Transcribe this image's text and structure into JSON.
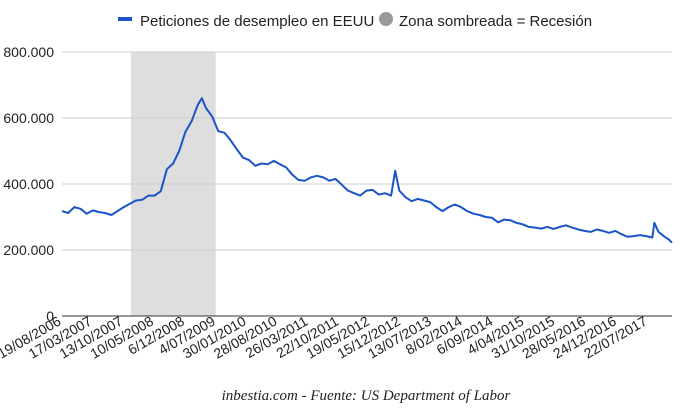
{
  "legend": {
    "series_label": "Peticiones de desempleo en EEUU",
    "shade_label": "Zona sombreada = Recesión"
  },
  "caption": "inbestia.com - Fuente: US Department of Labor",
  "colors": {
    "series": "#1a55c8",
    "recession": "#dedede",
    "shade_marker": "#999999",
    "grid": "#cccccc",
    "axis": "#333333"
  },
  "chart_data": {
    "type": "line",
    "title": "",
    "xlabel": "",
    "ylabel": "",
    "x_range": [
      "2006-08-19",
      "2017-12-31"
    ],
    "ylim": [
      0,
      800000
    ],
    "grid": true,
    "legend_position": "top",
    "y_ticks": [
      {
        "value": 0,
        "label": "0"
      },
      {
        "value": 200000,
        "label": "200.000"
      },
      {
        "value": 400000,
        "label": "400.000"
      },
      {
        "value": 600000,
        "label": "600.000"
      },
      {
        "value": 800000,
        "label": "800.000"
      }
    ],
    "x_ticks": [
      {
        "date": "2006-08-19",
        "label": "19/08/2006"
      },
      {
        "date": "2007-03-17",
        "label": "17/03/2007"
      },
      {
        "date": "2007-10-13",
        "label": "13/10/2007"
      },
      {
        "date": "2008-05-10",
        "label": "10/05/2008"
      },
      {
        "date": "2008-12-06",
        "label": "6/12/2008"
      },
      {
        "date": "2009-07-04",
        "label": "4/07/2009"
      },
      {
        "date": "2010-01-30",
        "label": "30/01/2010"
      },
      {
        "date": "2010-08-28",
        "label": "28/08/2010"
      },
      {
        "date": "2011-03-26",
        "label": "26/03/2011"
      },
      {
        "date": "2011-10-22",
        "label": "22/10/2011"
      },
      {
        "date": "2012-05-19",
        "label": "19/05/2012"
      },
      {
        "date": "2012-12-15",
        "label": "15/12/2012"
      },
      {
        "date": "2013-07-13",
        "label": "13/07/2013"
      },
      {
        "date": "2014-02-08",
        "label": "8/02/2014"
      },
      {
        "date": "2014-09-06",
        "label": "6/09/2014"
      },
      {
        "date": "2015-04-04",
        "label": "4/04/2015"
      },
      {
        "date": "2015-10-31",
        "label": "31/10/2015"
      },
      {
        "date": "2016-05-28",
        "label": "28/05/2016"
      },
      {
        "date": "2016-12-24",
        "label": "24/12/2016"
      },
      {
        "date": "2017-07-22",
        "label": "22/07/2017"
      }
    ],
    "recession": {
      "start": "2007-12-01",
      "end": "2009-06-30"
    },
    "series": [
      {
        "name": "Peticiones de desempleo en EEUU",
        "points": [
          [
            "2006-08-19",
            318000
          ],
          [
            "2006-09-30",
            312000
          ],
          [
            "2006-11-11",
            330000
          ],
          [
            "2006-12-23",
            325000
          ],
          [
            "2007-02-03",
            310000
          ],
          [
            "2007-03-17",
            320000
          ],
          [
            "2007-04-28",
            315000
          ],
          [
            "2007-06-09",
            312000
          ],
          [
            "2007-07-21",
            306000
          ],
          [
            "2007-09-01",
            318000
          ],
          [
            "2007-10-13",
            330000
          ],
          [
            "2007-11-24",
            340000
          ],
          [
            "2008-01-05",
            350000
          ],
          [
            "2008-02-16",
            352000
          ],
          [
            "2008-03-29",
            365000
          ],
          [
            "2008-05-10",
            365000
          ],
          [
            "2008-06-21",
            378000
          ],
          [
            "2008-08-02",
            445000
          ],
          [
            "2008-09-13",
            462000
          ],
          [
            "2008-10-25",
            500000
          ],
          [
            "2008-12-06",
            558000
          ],
          [
            "2009-01-17",
            590000
          ],
          [
            "2009-02-28",
            640000
          ],
          [
            "2009-03-28",
            660000
          ],
          [
            "2009-04-25",
            630000
          ],
          [
            "2009-06-06",
            605000
          ],
          [
            "2009-07-18",
            560000
          ],
          [
            "2009-08-29",
            555000
          ],
          [
            "2009-10-10",
            532000
          ],
          [
            "2009-11-21",
            505000
          ],
          [
            "2010-01-02",
            480000
          ],
          [
            "2010-02-13",
            472000
          ],
          [
            "2010-03-27",
            455000
          ],
          [
            "2010-05-08",
            462000
          ],
          [
            "2010-06-19",
            460000
          ],
          [
            "2010-07-31",
            470000
          ],
          [
            "2010-09-11",
            460000
          ],
          [
            "2010-10-23",
            450000
          ],
          [
            "2010-12-04",
            428000
          ],
          [
            "2011-01-15",
            412000
          ],
          [
            "2011-02-26",
            410000
          ],
          [
            "2011-04-09",
            420000
          ],
          [
            "2011-05-21",
            425000
          ],
          [
            "2011-07-02",
            420000
          ],
          [
            "2011-08-13",
            410000
          ],
          [
            "2011-09-24",
            415000
          ],
          [
            "2011-11-05",
            398000
          ],
          [
            "2011-12-17",
            380000
          ],
          [
            "2012-01-28",
            372000
          ],
          [
            "2012-03-10",
            365000
          ],
          [
            "2012-04-21",
            380000
          ],
          [
            "2012-06-02",
            382000
          ],
          [
            "2012-07-14",
            368000
          ],
          [
            "2012-08-25",
            372000
          ],
          [
            "2012-10-06",
            365000
          ],
          [
            "2012-11-03",
            440000
          ],
          [
            "2012-12-01",
            380000
          ],
          [
            "2013-01-12",
            360000
          ],
          [
            "2013-02-23",
            348000
          ],
          [
            "2013-04-06",
            355000
          ],
          [
            "2013-05-18",
            350000
          ],
          [
            "2013-06-29",
            345000
          ],
          [
            "2013-08-10",
            330000
          ],
          [
            "2013-09-21",
            318000
          ],
          [
            "2013-11-02",
            330000
          ],
          [
            "2013-12-14",
            338000
          ],
          [
            "2014-01-25",
            330000
          ],
          [
            "2014-03-08",
            318000
          ],
          [
            "2014-04-19",
            310000
          ],
          [
            "2014-05-31",
            306000
          ],
          [
            "2014-07-12",
            300000
          ],
          [
            "2014-08-23",
            298000
          ],
          [
            "2014-10-04",
            284000
          ],
          [
            "2014-11-15",
            292000
          ],
          [
            "2014-12-27",
            290000
          ],
          [
            "2015-02-07",
            282000
          ],
          [
            "2015-03-21",
            278000
          ],
          [
            "2015-05-02",
            270000
          ],
          [
            "2015-06-13",
            268000
          ],
          [
            "2015-07-25",
            265000
          ],
          [
            "2015-09-05",
            270000
          ],
          [
            "2015-10-17",
            264000
          ],
          [
            "2015-11-28",
            270000
          ],
          [
            "2016-01-09",
            275000
          ],
          [
            "2016-02-20",
            268000
          ],
          [
            "2016-04-02",
            262000
          ],
          [
            "2016-05-14",
            258000
          ],
          [
            "2016-06-25",
            255000
          ],
          [
            "2016-08-06",
            262000
          ],
          [
            "2016-09-17",
            258000
          ],
          [
            "2016-10-29",
            252000
          ],
          [
            "2016-12-10",
            258000
          ],
          [
            "2017-01-21",
            248000
          ],
          [
            "2017-03-04",
            240000
          ],
          [
            "2017-04-15",
            242000
          ],
          [
            "2017-05-27",
            245000
          ],
          [
            "2017-07-08",
            242000
          ],
          [
            "2017-08-19",
            238000
          ],
          [
            "2017-09-02",
            282000
          ],
          [
            "2017-09-30",
            255000
          ],
          [
            "2017-11-11",
            240000
          ],
          [
            "2017-12-09",
            232000
          ],
          [
            "2017-12-31",
            222000
          ]
        ]
      }
    ]
  }
}
